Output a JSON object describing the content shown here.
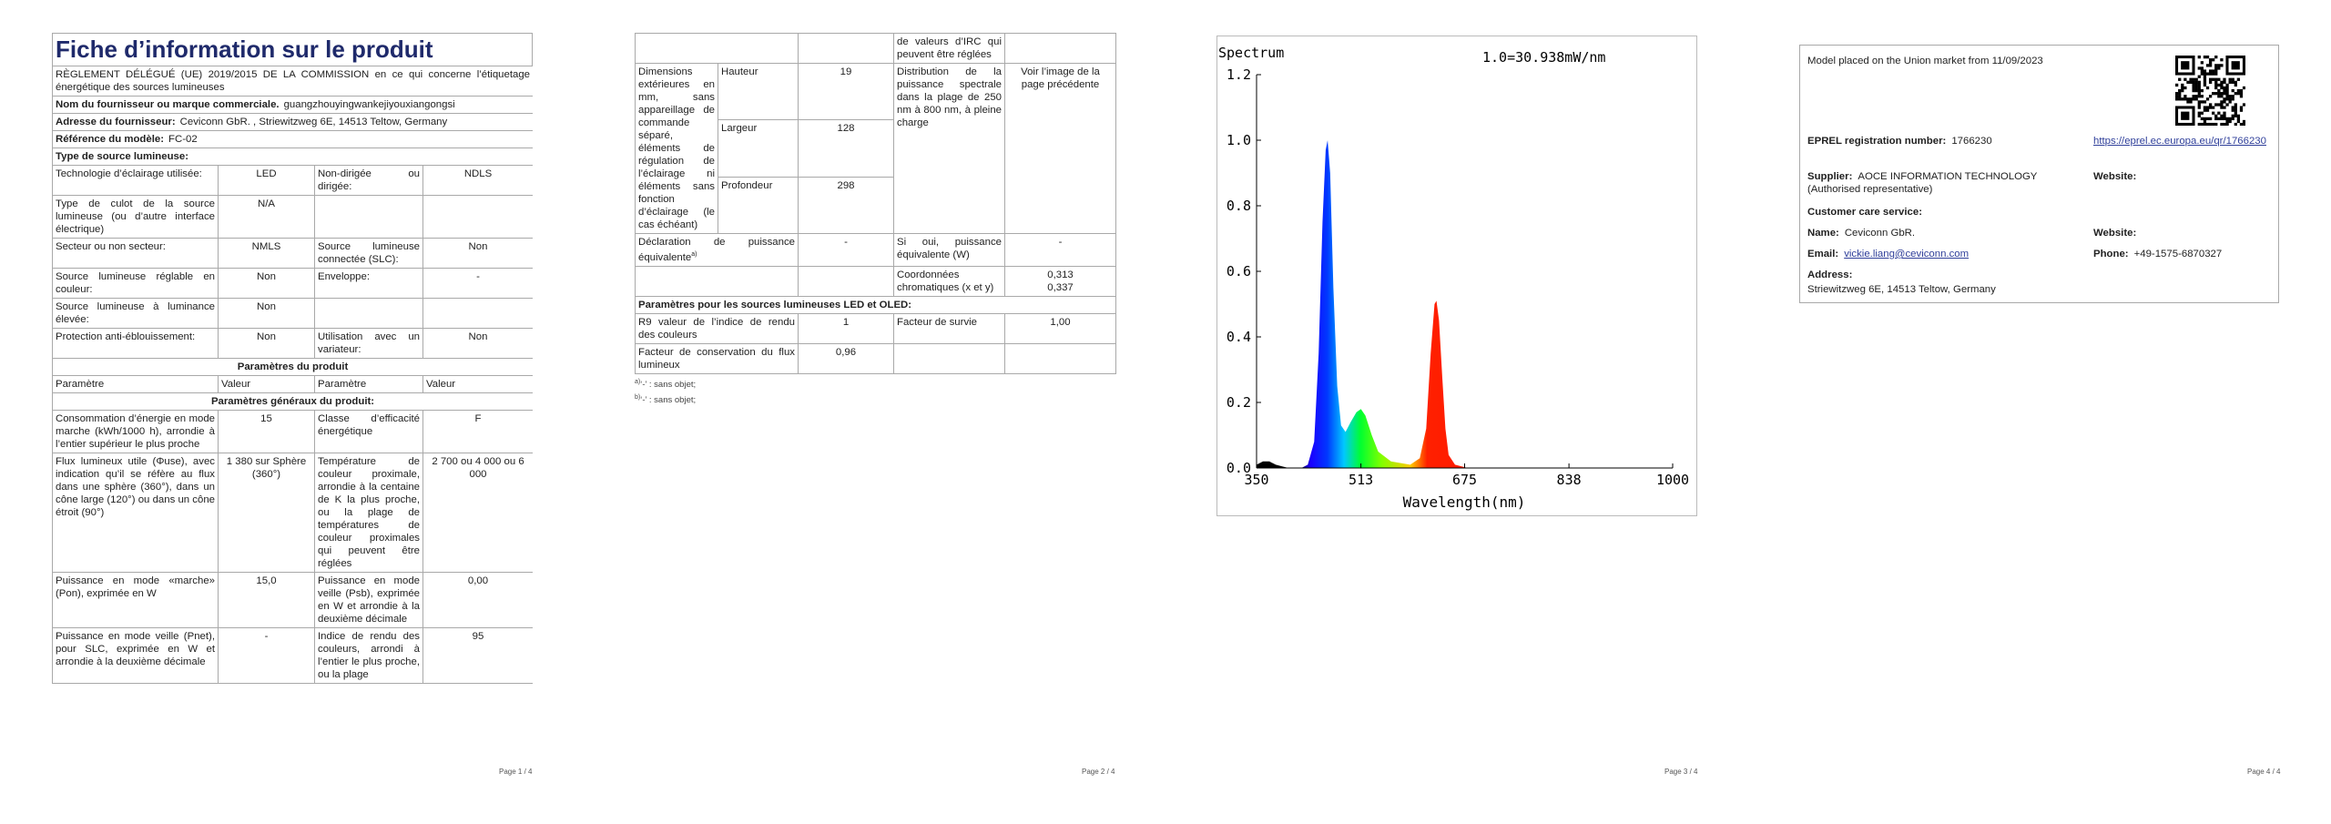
{
  "pages": [
    {
      "title": "Fiche d’information sur le produit",
      "regulation": "RÈGLEMENT DÉLÉGUÉ (UE) 2019/2015 DE LA COMMISSION en ce qui concerne l’étiquetage énergétique des sources lumineuses",
      "supplier_name": {
        "label": "Nom du fournisseur ou marque commerciale.",
        "value": "guangzhouyingwankejiyouxiangongsi"
      },
      "supplier_address": {
        "label": "Adresse du fournisseur:",
        "value": "Ceviconn GbR. , Striewitzweg 6E, 14513 Teltow, Germany"
      },
      "model": {
        "label": "Référence du modèle:",
        "value": "FC-02"
      },
      "type_heading": "Type de source lumineuse:",
      "type_rows": [
        [
          "Technologie d’éclairage utilisée:",
          "LED",
          "Non-dirigée ou dirigée:",
          "NDLS"
        ],
        [
          "Type de culot de la source lumineuse (ou d’autre interface électrique)",
          "N/A"
        ],
        [
          "Secteur ou non secteur:",
          "NMLS",
          "Source lumineuse connectée (SLC):",
          "Non"
        ],
        [
          "Source lumineuse réglable en couleur:",
          "Non",
          "Enveloppe:",
          "-"
        ],
        [
          "Source lumineuse à luminance élevée:",
          "Non"
        ],
        [
          "Protection anti-éblouissement:",
          "Non",
          "Utilisation avec un variateur:",
          "Non"
        ]
      ],
      "params_heading": "Paramètres du produit",
      "params_header": [
        "Paramètre",
        "Valeur",
        "Paramètre",
        "Valeur"
      ],
      "general_heading": "Paramètres généraux du produit:",
      "general_rows": [
        [
          "Consommation d’énergie en mode marche (kWh/1000 h), arrondie à l’entier supérieur le plus proche",
          "15",
          "Classe d’efficacité énergétique",
          "F"
        ],
        [
          "Flux lumineux utile (Φuse), avec indication qu’il se réfère au flux dans une sphère (360°), dans un cône large (120°) ou dans un cône étroit (90°)",
          "1 380 sur Sphère (360°)",
          "Température de couleur proximale, arrondie à la centaine de K la plus proche, ou la plage de températures de couleur proximales qui peuvent être réglées",
          "2 700 ou 4 000 ou 6 000"
        ],
        [
          "Puissance en mode «marche» (Pon), exprimée en W",
          "15,0",
          "Puissance en mode veille (Psb), exprimée en W et arrondie à la deuxième décimale",
          "0,00"
        ],
        [
          "Puissance en mode veille (Pnet), pour SLC, exprimée en W et arrondie à la deuxième décimale",
          "-",
          "Indice de rendu des couleurs, arrondi à l’entier le plus proche, ou la plage",
          "95"
        ]
      ],
      "page_number": "Page 1 / 4"
    },
    {
      "continuation": "de valeurs d’IRC qui peuvent être réglées",
      "dimensions": {
        "label": "Dimensions extérieures en mm, sans appareillage de commande séparé, éléments de régulation de l’éclairage ni éléments sans fonction d’éclairage (le cas échéant)",
        "rows": [
          [
            "Hauteur",
            "19"
          ],
          [
            "Largeur",
            "128"
          ],
          [
            "Profondeur",
            "298"
          ]
        ]
      },
      "spectral": {
        "label": "Distribution de la puissance spectrale dans la plage de 250 nm à 800 nm, à pleine charge",
        "value": "Voir l’image de la page précédente"
      },
      "equivalent": {
        "label": "Déclaration de puissance équivalente",
        "note": "a)",
        "value": "-",
        "label2": "Si oui, puissance équivalente (W)",
        "value2": "-"
      },
      "chromaticity": {
        "label": "Coordonnées chromatiques (x et y)",
        "values": [
          "0,313",
          "0,337"
        ]
      },
      "led_heading": "Paramètres pour les sources lumineuses LED et OLED:",
      "led_rows": [
        [
          "R9 valeur de l’indice de rendu des couleurs",
          "1",
          "Facteur de survie",
          "1,00"
        ],
        [
          "Facteur de conservation du flux lumineux",
          "0,96"
        ]
      ],
      "footnotes": [
        {
          "mark": "a)",
          "text": "‘-’ : sans objet;"
        },
        {
          "mark": "b)",
          "text": "‘-’ : sans objet;"
        }
      ],
      "page_number": "Page 2 / 4"
    },
    {
      "page_number": "Page 3 / 4"
    },
    {
      "market": "Model placed on the Union market from 11/09/2023",
      "eprel": {
        "label": "EPREL registration number:",
        "value": "1766230",
        "url": "https://eprel.ec.europa.eu/qr/1766230"
      },
      "supplier": {
        "label": "Supplier:",
        "value": "AOCE INFORMATION TECHNOLOGY (Authorised representative)",
        "website": "Website:"
      },
      "customer_care": "Customer care service:",
      "name": {
        "label": "Name:",
        "value": "Ceviconn GbR.",
        "website": "Website:"
      },
      "email": {
        "label": "Email:",
        "value": "vickie.liang@ceviconn.com"
      },
      "phone": {
        "label": "Phone:",
        "value": "+49-1575-6870327"
      },
      "address": {
        "label": "Address:",
        "value": "Striewitzweg 6E, 14513 Teltow, Germany"
      },
      "page_number": "Page 4 / 4"
    }
  ],
  "chart_data": {
    "type": "area",
    "title": "Spectrum",
    "annotation": "1.0=30.938mW/nm",
    "x_label": "Wavelength(nm)",
    "x": [
      350,
      360,
      370,
      380,
      390,
      400,
      420,
      430,
      440,
      447,
      453,
      458,
      461,
      465,
      470,
      476,
      482,
      489,
      497,
      506,
      513,
      520,
      530,
      540,
      560,
      590,
      605,
      615,
      622,
      628,
      631,
      635,
      640,
      645,
      650,
      660,
      680,
      1000
    ],
    "values": [
      0.01,
      0.02,
      0.02,
      0.01,
      0.005,
      0,
      0,
      0.01,
      0.08,
      0.35,
      0.75,
      0.97,
      1.0,
      0.9,
      0.55,
      0.25,
      0.13,
      0.11,
      0.14,
      0.17,
      0.18,
      0.16,
      0.1,
      0.05,
      0.02,
      0.01,
      0.03,
      0.12,
      0.35,
      0.5,
      0.51,
      0.45,
      0.28,
      0.12,
      0.04,
      0.01,
      0,
      0
    ],
    "xlim": [
      350,
      1000
    ],
    "ylim": [
      0,
      1.2
    ],
    "xticks": [
      350,
      513,
      675,
      838,
      1000
    ],
    "yticks": [
      {
        "value": 0,
        "label": "0.0"
      },
      0.2,
      0.4,
      0.6,
      0.8,
      {
        "value": 1,
        "label": "1.0"
      },
      1.2
    ],
    "grid": false
  }
}
